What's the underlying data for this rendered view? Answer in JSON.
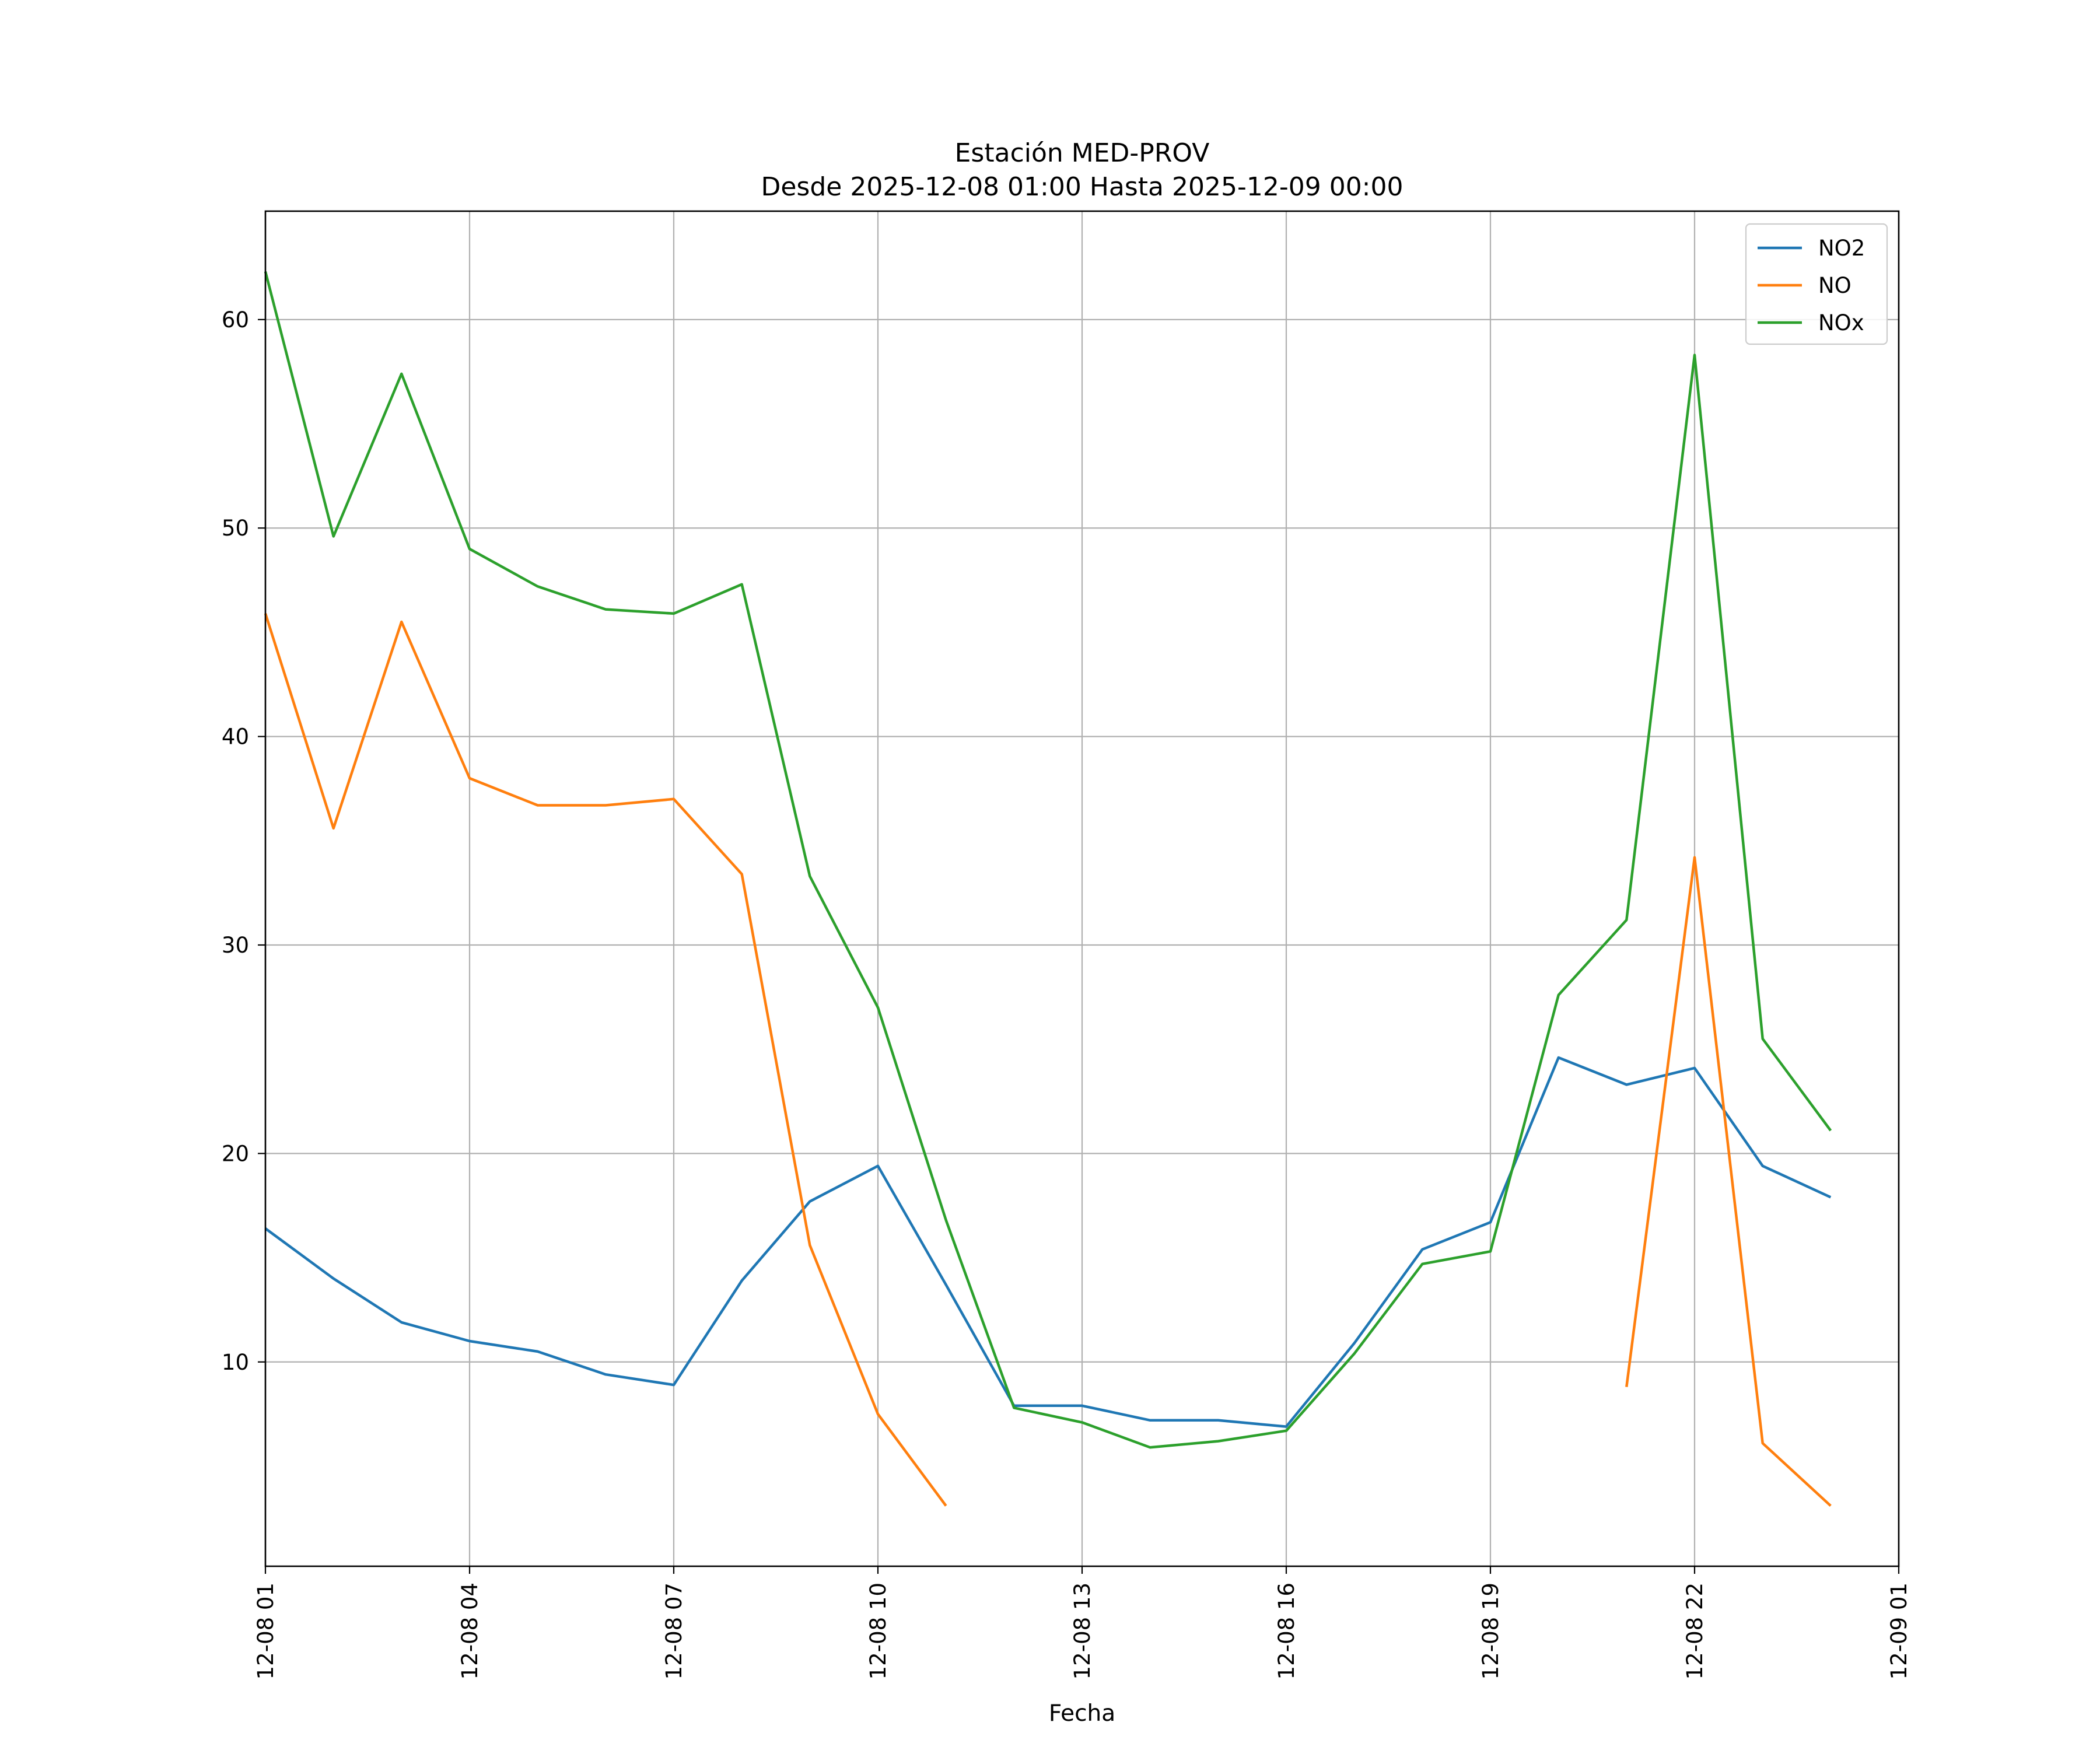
{
  "chart_data": {
    "type": "line",
    "title": "Estación MED-PROV",
    "subtitle": "Desde 2025-12-08 01:00 Hasta 2025-12-09 00:00",
    "xlabel": "Fecha",
    "ylabel": "",
    "x": [
      "12-08 01",
      "12-08 02",
      "12-08 03",
      "12-08 04",
      "12-08 05",
      "12-08 06",
      "12-08 07",
      "12-08 08",
      "12-08 09",
      "12-08 10",
      "12-08 11",
      "12-08 12",
      "12-08 13",
      "12-08 14",
      "12-08 15",
      "12-08 16",
      "12-08 17",
      "12-08 18",
      "12-08 19",
      "12-08 20",
      "12-08 21",
      "12-08 22",
      "12-08 23",
      "12-09 00"
    ],
    "x_range": [
      0.0,
      24.0
    ],
    "x_ticks": [
      "12-08 01",
      "12-08 04",
      "12-08 07",
      "12-08 10",
      "12-08 13",
      "12-08 16",
      "12-08 19",
      "12-08 22",
      "12-09 01"
    ],
    "ylim": [
      0.2,
      65.2
    ],
    "y_ticks": [
      10,
      20,
      30,
      40,
      50,
      60
    ],
    "grid": true,
    "legend_position": "top-right",
    "series": [
      {
        "name": "NO2",
        "color": "#1f77b4",
        "values": [
          16.4,
          14.0,
          11.9,
          11.0,
          10.5,
          9.4,
          8.9,
          13.9,
          17.7,
          19.4,
          13.7,
          7.9,
          7.9,
          7.2,
          7.2,
          6.9,
          10.9,
          15.4,
          16.7,
          24.6,
          23.3,
          24.1,
          19.4,
          17.9
        ]
      },
      {
        "name": "NO",
        "color": "#ff7f0e",
        "values": [
          45.9,
          35.6,
          45.5,
          38.0,
          36.7,
          36.7,
          37.0,
          33.4,
          15.6,
          7.5,
          3.1,
          null,
          null,
          null,
          null,
          null,
          null,
          null,
          null,
          null,
          8.8,
          34.2,
          6.1,
          3.1
        ]
      },
      {
        "name": "NOx",
        "color": "#2ca02c",
        "values": [
          62.3,
          49.6,
          57.4,
          49.0,
          47.2,
          46.1,
          45.9,
          47.3,
          33.3,
          27.0,
          16.8,
          7.8,
          7.1,
          5.9,
          6.2,
          6.7,
          10.4,
          14.7,
          15.3,
          27.6,
          31.2,
          58.3,
          25.5,
          21.1
        ]
      }
    ]
  }
}
